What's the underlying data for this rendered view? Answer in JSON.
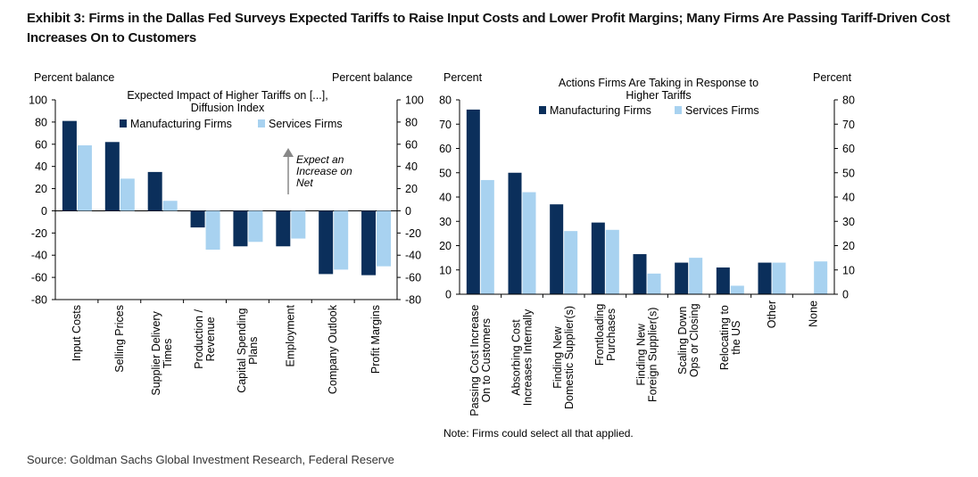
{
  "title": "Exhibit 3: Firms in the Dallas Fed Surveys Expected Tariffs to Raise Input Costs and Lower Profit Margins; Many Firms Are Passing Tariff-Driven Cost Increases On to Customers",
  "source": "Source: Goldman Sachs Global Investment Research, Federal Reserve",
  "colors": {
    "manufacturing": "#0b2f5b",
    "services": "#a8d2f0"
  },
  "chart_data": [
    {
      "type": "bar",
      "title": "Expected Impact of Higher Tariffs  on [...], Diffusion Index",
      "ylabel_left": "Percent balance",
      "ylabel_right": "Percent balance",
      "ylim": [
        -80,
        100
      ],
      "yticks": [
        -80,
        -60,
        -40,
        -20,
        0,
        20,
        40,
        60,
        80,
        100
      ],
      "categories": [
        "Input Costs",
        "Selling Prices",
        "Supplier Delivery Times",
        "Production / Revenue",
        "Capital Spending Plans",
        "Employment",
        "Company Outlook",
        "Profit Margins"
      ],
      "series": [
        {
          "name": "Manufacturing Firms",
          "values": [
            81,
            62,
            35,
            -15,
            -32,
            -32,
            -57,
            -58
          ]
        },
        {
          "name": "Services Firms",
          "values": [
            59,
            29,
            9,
            -35,
            -28,
            -25,
            -53,
            -50
          ]
        }
      ],
      "annotation": "Expect an Increase on Net",
      "legend_position": "top"
    },
    {
      "type": "bar",
      "title": "Actions Firms Are Taking in Response to Higher Tariffs",
      "ylabel_left": "Percent",
      "ylabel_right": "Percent",
      "ylim": [
        0,
        80
      ],
      "yticks": [
        0,
        10,
        20,
        30,
        40,
        50,
        60,
        70,
        80
      ],
      "categories": [
        "Passing Cost Increase On to Customers",
        "Absorbing Cost Increases Internally",
        "Finding New Domestic Supplier(s)",
        "Frontloading Purchases",
        "Finding New Foreign Supplier(s)",
        "Scaling Down Ops or Closing",
        "Relocating to the US",
        "Other",
        "None"
      ],
      "series": [
        {
          "name": "Manufacturing Firms",
          "values": [
            76,
            50,
            37,
            29.5,
            16.5,
            13,
            11,
            13,
            0
          ]
        },
        {
          "name": "Services Firms",
          "values": [
            47,
            42,
            26,
            26.5,
            8.5,
            15,
            3.5,
            13,
            13.5
          ]
        }
      ],
      "note": "Note: Firms could select all that applied.",
      "legend_position": "top"
    }
  ]
}
